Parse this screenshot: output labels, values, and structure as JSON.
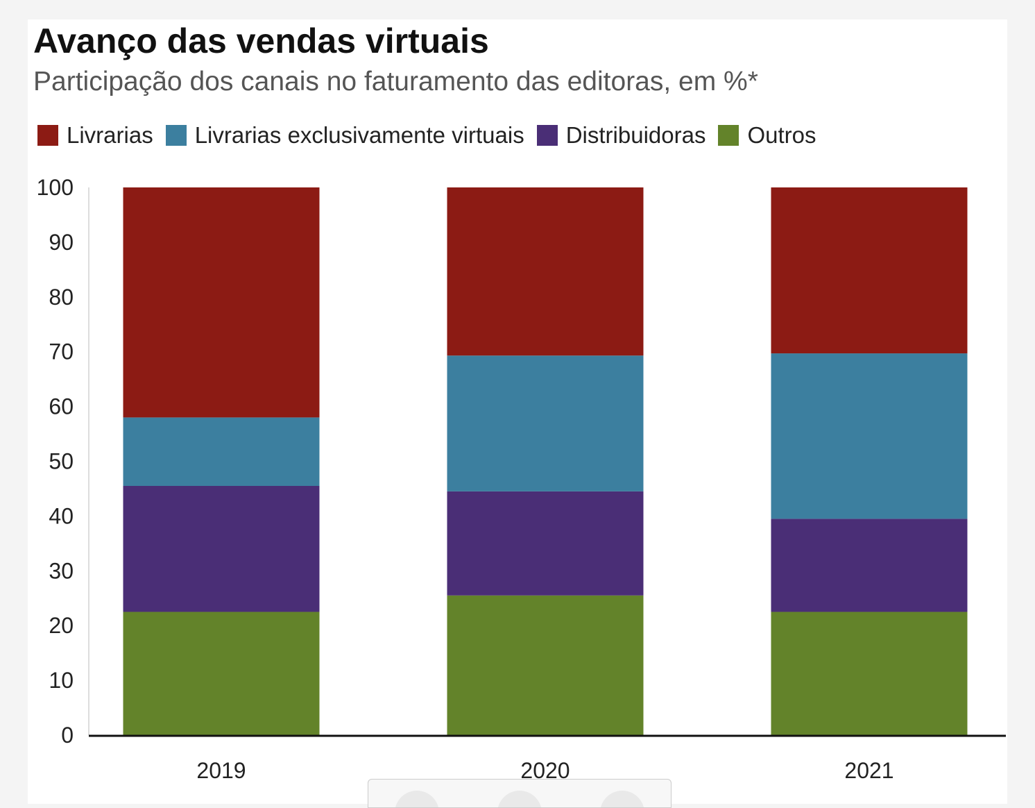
{
  "chart_data": {
    "type": "bar",
    "stacked": true,
    "title": "Avanço das vendas virtuais",
    "subtitle": "Participação dos canais no faturamento das editoras, em %*",
    "categories": [
      "2019",
      "2020",
      "2021"
    ],
    "series": [
      {
        "name": "Outros",
        "color": "#63832a",
        "values": [
          22.5,
          25.5,
          22.5
        ]
      },
      {
        "name": "Distribuidoras",
        "color": "#4a2e76",
        "values": [
          23.0,
          19.0,
          17.0
        ]
      },
      {
        "name": "Livrarias exclusivamente virtuais",
        "color": "#3c7f9f",
        "values": [
          12.5,
          24.8,
          30.2
        ]
      },
      {
        "name": "Livrarias",
        "color": "#8c1b14",
        "values": [
          42.0,
          30.7,
          30.3
        ]
      }
    ],
    "legend_order": [
      "Livrarias",
      "Livrarias exclusivamente virtuais",
      "Distribuidoras",
      "Outros"
    ],
    "legend_position": "top-left",
    "ylim": [
      0,
      100
    ],
    "yticks": [
      0,
      10,
      20,
      30,
      40,
      50,
      60,
      70,
      80,
      90,
      100
    ],
    "xlabel": "",
    "ylabel": "",
    "grid": false
  }
}
